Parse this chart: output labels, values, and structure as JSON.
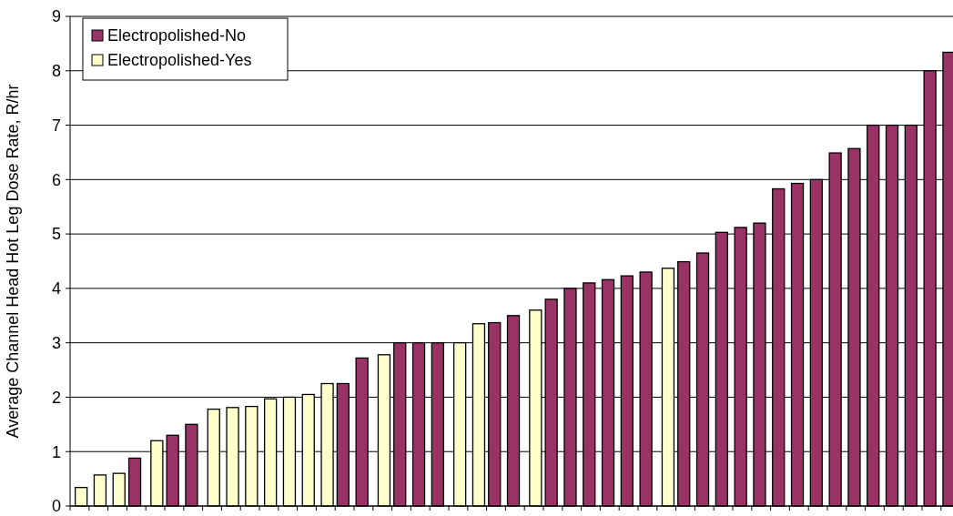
{
  "chart_data": {
    "type": "bar",
    "ylabel": "Average Channel Head Hot Leg Dose Rate, R/hr",
    "categories": [
      null,
      null,
      null,
      null,
      null,
      null,
      null,
      null,
      null,
      null,
      null,
      null,
      null,
      null,
      null,
      null,
      null,
      null,
      null,
      null,
      null,
      null,
      null,
      null,
      null,
      null,
      null,
      null,
      null,
      null,
      null,
      null,
      null,
      null,
      null,
      null,
      null,
      null,
      null,
      null,
      null,
      null,
      null,
      null,
      null,
      null,
      null
    ],
    "series": [
      {
        "name": "Electropolished-No",
        "color": "#993366",
        "values": [
          null,
          null,
          null,
          0.88,
          null,
          1.3,
          1.5,
          null,
          null,
          null,
          null,
          null,
          null,
          null,
          2.25,
          2.72,
          null,
          3,
          3,
          3,
          null,
          null,
          3.37,
          3.5,
          null,
          3.8,
          4.0,
          4.1,
          4.16,
          4.23,
          4.3,
          null,
          4.49,
          4.65,
          5.03,
          5.12,
          5.2,
          5.83,
          5.93,
          6.0,
          6.49,
          6.57,
          7,
          7,
          7,
          8,
          8.34
        ]
      },
      {
        "name": "Electropolished-Yes",
        "color": "#ffffcc",
        "values": [
          0.34,
          0.57,
          0.6,
          null,
          1.2,
          null,
          null,
          1.78,
          1.81,
          1.83,
          1.97,
          2.0,
          2.05,
          2.25,
          null,
          null,
          2.78,
          null,
          null,
          null,
          3,
          3.35,
          null,
          null,
          3.6,
          null,
          null,
          null,
          null,
          null,
          null,
          4.37,
          null,
          null,
          null,
          null,
          null,
          null,
          null,
          null,
          null,
          null,
          null,
          null,
          null,
          null,
          null
        ]
      }
    ],
    "ylim": [
      0,
      9
    ],
    "yticks": [
      0,
      1,
      2,
      3,
      4,
      5,
      6,
      7,
      8,
      9
    ],
    "grid": "y",
    "legend": "top left",
    "tick_labels": "y"
  }
}
